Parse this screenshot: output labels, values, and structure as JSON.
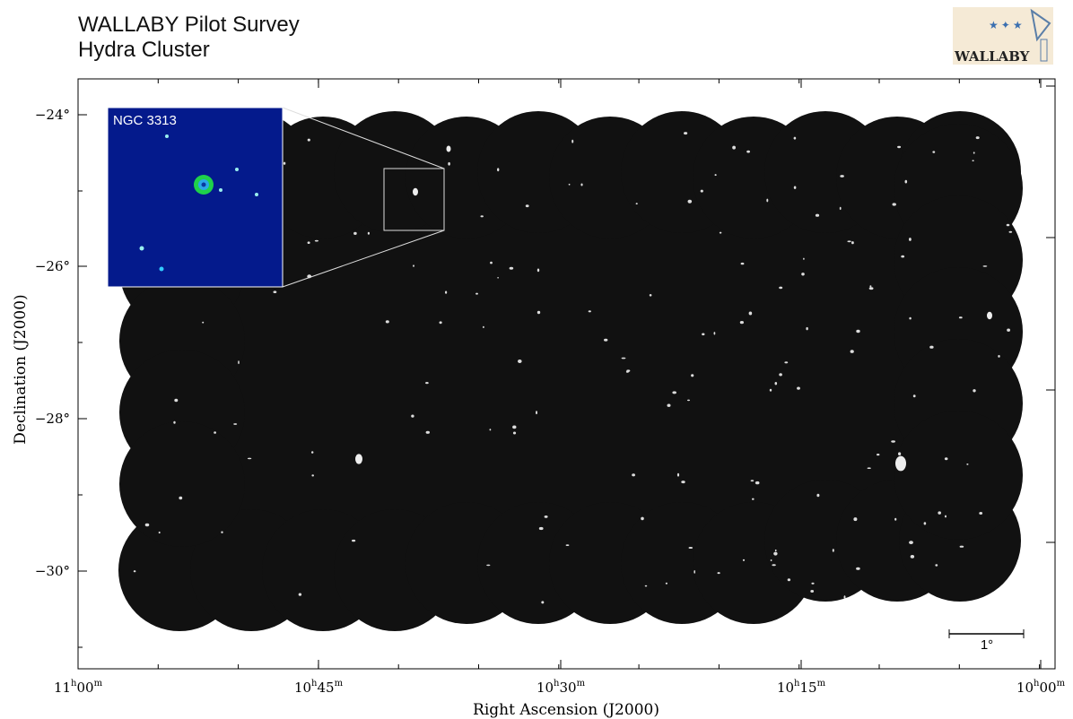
{
  "header": {
    "title": "WALLABY Pilot Survey",
    "subtitle": "Hydra Cluster"
  },
  "logo": {
    "text": "WALLABY"
  },
  "inset": {
    "label": "NGC 3313"
  },
  "scale_bar": {
    "label": "1°"
  },
  "x_axis": {
    "label": "Right Ascension (J2000)",
    "ticks": [
      [
        "11",
        "h",
        "00",
        "m"
      ],
      [
        "10",
        "h",
        "45",
        "m"
      ],
      [
        "10",
        "h",
        "30",
        "m"
      ],
      [
        "10",
        "h",
        "15",
        "m"
      ],
      [
        "10",
        "h",
        "00",
        "m"
      ]
    ]
  },
  "y_axis": {
    "label": "Declination (J2000)",
    "ticks": [
      "−24°",
      "−26°",
      "−28°",
      "−30°"
    ]
  }
}
